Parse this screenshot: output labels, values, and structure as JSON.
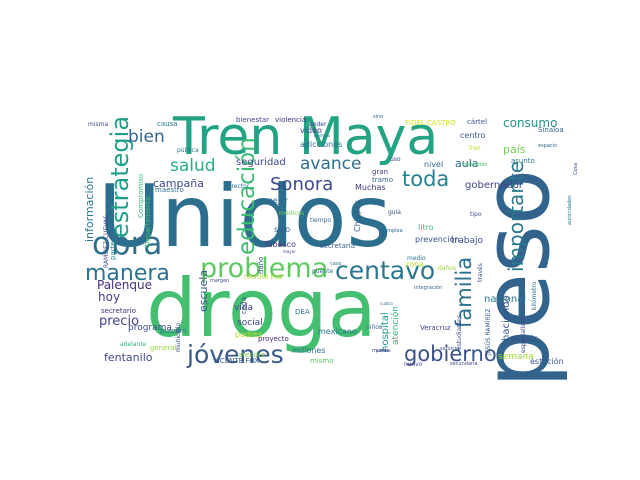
{
  "words": [
    {
      "text": "Unidos",
      "color": "#2c6e8e"
    },
    {
      "text": "peso",
      "color": "#31638d"
    },
    {
      "text": "droga",
      "color": "#44bf70"
    },
    {
      "text": "Tren Maya",
      "color": "#22a384"
    },
    {
      "text": "obra",
      "color": "#2e6f8e"
    },
    {
      "text": "problema",
      "color": "#5ec962"
    },
    {
      "text": "centavo",
      "color": "#2a788e"
    },
    {
      "text": "jóvenes",
      "color": "#38588c"
    },
    {
      "text": "manera",
      "color": "#2c728e"
    },
    {
      "text": "estrategia",
      "color": "#1f9e89"
    },
    {
      "text": "educación",
      "color": "#3dbc74"
    },
    {
      "text": "importante",
      "color": "#2a788e"
    },
    {
      "text": "familia",
      "color": "#2d708e"
    },
    {
      "text": "gobierno",
      "color": "#3b528b"
    },
    {
      "text": "Sonora",
      "color": "#3e4a89"
    },
    {
      "text": "toda",
      "color": "#26828e"
    },
    {
      "text": "avance",
      "color": "#2e6e8e"
    },
    {
      "text": "bien",
      "color": "#32648e"
    },
    {
      "text": "salud",
      "color": "#28ae80"
    },
    {
      "text": "consumo",
      "color": "#21918c"
    },
    {
      "text": "precio",
      "color": "#414487"
    },
    {
      "text": "Palenque",
      "color": "#472d7b"
    },
    {
      "text": "hoy",
      "color": "#433e85"
    },
    {
      "text": "fentanilo",
      "color": "#3e4989"
    },
    {
      "text": "información",
      "color": "#2a788e"
    },
    {
      "text": "campaña",
      "color": "#3f4788"
    },
    {
      "text": "escuela",
      "color": "#39568c"
    },
    {
      "text": "hospital",
      "color": "#1f9a8a"
    },
    {
      "text": "atención",
      "color": "#32b67a"
    },
    {
      "text": "gobernador",
      "color": "#404688"
    },
    {
      "text": "aula",
      "color": "#2f6b8e"
    },
    {
      "text": "país",
      "color": "#73d056"
    },
    {
      "text": "haciendo",
      "color": "#3a548c"
    },
    {
      "text": "nacional",
      "color": "#2a788e"
    },
    {
      "text": "seguridad",
      "color": "#3f4889"
    },
    {
      "text": "trabajo",
      "color": "#3c4f8a"
    },
    {
      "text": "Chiapas",
      "color": "#355f8d"
    },
    {
      "text": "social",
      "color": "#404387"
    },
    {
      "text": "vida",
      "color": "#3f4788"
    },
    {
      "text": "programa",
      "color": "#3e4c8a"
    },
    {
      "text": "millones",
      "color": "#2c738e"
    },
    {
      "text": "mexicano",
      "color": "#2a788e"
    },
    {
      "text": "semana",
      "color": "#a2da37"
    },
    {
      "text": "estación",
      "color": "#38598c"
    },
    {
      "text": "seguir",
      "color": "#3c4f8a"
    },
    {
      "text": "zona",
      "color": "#b8de29"
    },
    {
      "text": "prevención",
      "color": "#3a548c"
    },
    {
      "text": "Muchas",
      "color": "#46337f"
    },
    {
      "text": "mejor",
      "color": "#2f6c8e"
    },
    {
      "text": "sólo",
      "color": "#345f8d"
    },
    {
      "text": "Tabasco",
      "color": "#453781"
    },
    {
      "text": "padres",
      "color": "#c2df23"
    },
    {
      "text": "proyecto",
      "color": "#482979"
    },
    {
      "text": "mismo",
      "color": "#5cc863"
    },
    {
      "text": "centro",
      "color": "#38588c"
    },
    {
      "text": "nivel",
      "color": "#306a8e"
    },
    {
      "text": "litro",
      "color": "#3dbc74"
    },
    {
      "text": "adicciones",
      "color": "#2e6e8e"
    },
    {
      "text": "video",
      "color": "#414487"
    },
    {
      "text": "bienestar",
      "color": "#3f4889"
    },
    {
      "text": "violencia",
      "color": "#472c7a"
    },
    {
      "text": "FIDEL CASTRO",
      "color": "#d2e21b"
    },
    {
      "text": "cártel",
      "color": "#3a548c"
    },
    {
      "text": "asunto",
      "color": "#2a788e"
    },
    {
      "text": "Veracruz",
      "color": "#3e4a89"
    },
    {
      "text": "VICENTE FOX",
      "color": "#38598c"
    },
    {
      "text": "secretario",
      "color": "#46327e"
    },
    {
      "text": "Departamento",
      "color": "#4ac16d"
    },
    {
      "text": "Compromiso",
      "color": "#34b679"
    },
    {
      "text": "DEA",
      "color": "#2c728e"
    },
    {
      "text": "secretaria",
      "color": "#355f8d"
    },
    {
      "text": "pueden",
      "color": "#2d708e"
    },
    {
      "text": "general",
      "color": "#95d840"
    },
    {
      "text": "adelante",
      "color": "#35b779"
    },
    {
      "text": "maestro",
      "color": "#2f6c8e"
    },
    {
      "text": "tramo",
      "color": "#31688e"
    },
    {
      "text": "gran",
      "color": "#46337f"
    },
    {
      "text": "atender",
      "color": "#7ad151"
    },
    {
      "text": "cada",
      "color": "#3e4989"
    },
    {
      "text": "daño",
      "color": "#3b528b"
    },
    {
      "text": "parte",
      "color": "#238a8d"
    },
    {
      "text": "causa",
      "color": "#2a788e"
    },
    {
      "text": "Sinaloa",
      "color": "#34618d"
    },
    {
      "text": "misma",
      "color": "#3e4a89"
    },
    {
      "text": "pública",
      "color": "#2a788e"
    },
    {
      "text": "municipio",
      "color": "#3b518b"
    },
    {
      "text": "puente",
      "color": "#2e6f8e"
    },
    {
      "text": "médicos",
      "color": "#6ece58"
    },
    {
      "text": "tiempo",
      "color": "#31688e"
    },
    {
      "text": "mundo",
      "color": "#3e4a89"
    },
    {
      "text": "estudiantes",
      "color": "#3e4a89"
    },
    {
      "text": "especialista",
      "color": "#3f4788"
    },
    {
      "text": "niños",
      "color": "#38588c"
    },
    {
      "text": "nuevo",
      "color": "#3f4889"
    },
    {
      "text": "integración",
      "color": "#35608d"
    },
    {
      "text": "medio",
      "color": "#2d708e"
    },
    {
      "text": "daños",
      "color": "#9dd93b"
    },
    {
      "text": "servicio",
      "color": "#3a548c"
    },
    {
      "text": "secundaria",
      "color": "#3f4889"
    },
    {
      "text": "RAMÍREZ CUEVAS",
      "color": "#3e4989"
    },
    {
      "text": "CASTRO RUZ",
      "color": "#b5de2b"
    },
    {
      "text": "JESÚS RAMÍREZ",
      "color": "#34618d"
    },
    {
      "text": "través",
      "color": "#3c4f8a"
    },
    {
      "text": "kilómetro",
      "color": "#2d708e"
    },
    {
      "text": "espacio",
      "color": "#2f6c8e"
    },
    {
      "text": "director",
      "color": "#2c728e"
    },
    {
      "text": "alto",
      "color": "#2a788e"
    },
    {
      "text": "guía",
      "color": "#3a548c"
    },
    {
      "text": "tipo",
      "color": "#3b528b"
    },
    {
      "text": "uso",
      "color": "#3e4a89"
    },
    {
      "text": "poder",
      "color": "#3f4788"
    },
    {
      "text": "Tren",
      "color": "#c8e020"
    },
    {
      "text": "entendido",
      "color": "#4ac16d"
    },
    {
      "text": "Cosa",
      "color": "#3b528b"
    },
    {
      "text": "autoridades",
      "color": "#2a788e"
    },
    {
      "text": "sino",
      "color": "#2f6c8e"
    },
    {
      "text": "ejemplo",
      "color": "#2d708e"
    },
    {
      "text": "margen",
      "color": "#3b528b"
    },
    {
      "text": "caso",
      "color": "#2c728e"
    },
    {
      "text": "política",
      "color": "#3f4889"
    },
    {
      "text": "mayor",
      "color": "#3f4788"
    },
    {
      "text": "emplea",
      "color": "#2f6c8e"
    },
    {
      "text": "cuatro",
      "color": "#2e6f8e"
    }
  ]
}
